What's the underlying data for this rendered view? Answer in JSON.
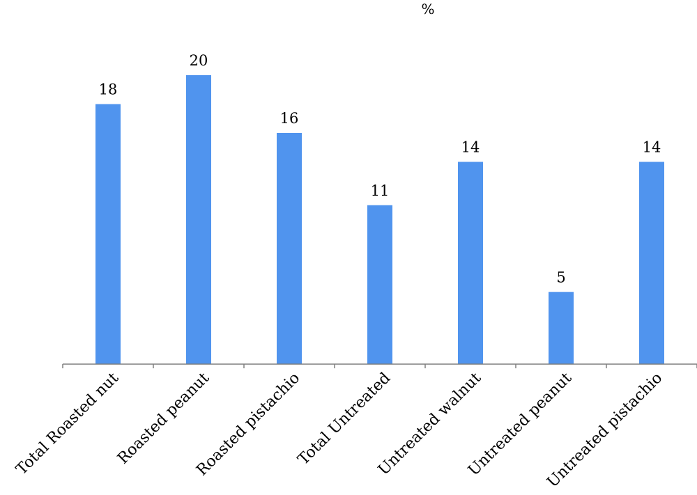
{
  "chart_data": {
    "type": "bar",
    "title": "%",
    "xlabel": "",
    "ylabel": "",
    "categories": [
      "Total Roasted nut",
      "Roasted peanut",
      "Roasted pistachio",
      "Total Untreated",
      "Untreated walnut",
      "Untreated peanut",
      "Untreated pistachio"
    ],
    "values": [
      18,
      20,
      16,
      11,
      14,
      5,
      14
    ],
    "ylim": [
      0,
      25
    ],
    "grid": false,
    "legend": "none",
    "bar_color": "#5094ee"
  }
}
